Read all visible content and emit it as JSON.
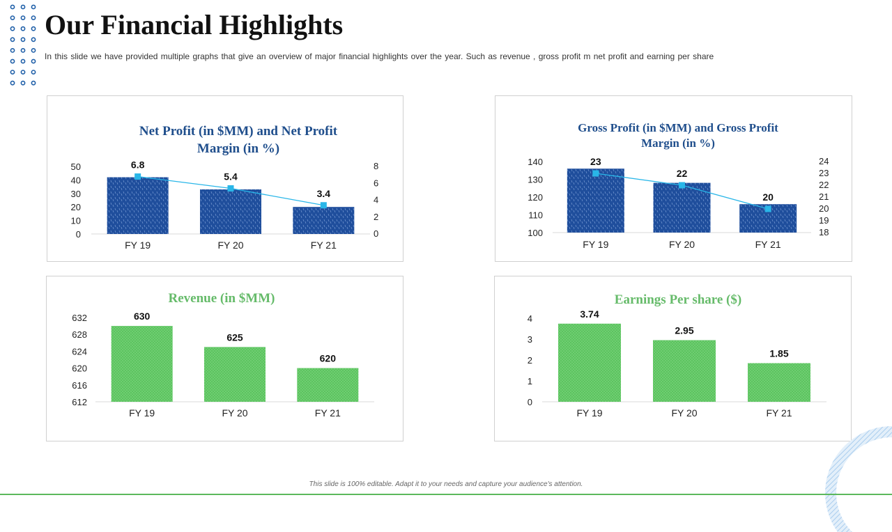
{
  "slide": {
    "title": "Our Financial Highlights",
    "subtitle": "In this slide we have provided  multiple graphs that give  an overview  of major financial highlights over the year.  Such as revenue   , gross profit  m net profit and earning per share",
    "footer": "This slide is 100% editable. Adapt it to your needs and capture your audience's attention."
  },
  "colors": {
    "blue_bar": "#1f4e9c",
    "blue_title": "#1f4e8c",
    "green_bar": "#5cc45f",
    "green_title": "#66bb6a",
    "line": "#29b6e8"
  },
  "chart_data": [
    {
      "id": "net-profit",
      "type": "bar",
      "title_lines": [
        "Net Profit  (in $MM) and Net Profit",
        "Margin  (in %)"
      ],
      "categories": [
        "FY 19",
        "FY 20",
        "FY 21"
      ],
      "series": [
        {
          "name": "Net Profit (in $MM)",
          "type": "bar",
          "axis": "left",
          "values": [
            42,
            33,
            20
          ]
        },
        {
          "name": "Net Profit Margin (in %)",
          "type": "line",
          "axis": "right",
          "values": [
            6.8,
            5.4,
            3.4
          ],
          "labels": [
            "6.8",
            "5.4",
            "3.4"
          ]
        }
      ],
      "y_left": {
        "min": 0,
        "max": 50,
        "ticks": [
          "0",
          "10",
          "20",
          "30",
          "40",
          "50"
        ]
      },
      "y_right": {
        "min": 0,
        "max": 8,
        "ticks": [
          "0",
          "2",
          "4",
          "6",
          "8"
        ]
      }
    },
    {
      "id": "gross-profit",
      "type": "bar",
      "title_lines": [
        "Gross Profit (in $MM) and Gross Profit",
        "Margin (in %)"
      ],
      "categories": [
        "FY 19",
        "FY 20",
        "FY 21"
      ],
      "series": [
        {
          "name": "Gross Profit (in $MM)",
          "type": "bar",
          "axis": "left",
          "values": [
            136,
            128,
            116
          ]
        },
        {
          "name": "Gross Profit Margin (in %)",
          "type": "line",
          "axis": "right",
          "values": [
            23,
            22,
            20
          ],
          "labels": [
            "23",
            "22",
            "20"
          ]
        }
      ],
      "y_left": {
        "min": 100,
        "max": 140,
        "ticks": [
          "100",
          "110",
          "120",
          "130",
          "140"
        ]
      },
      "y_right": {
        "min": 18,
        "max": 24,
        "ticks": [
          "18",
          "19",
          "20",
          "21",
          "22",
          "23",
          "24"
        ]
      }
    },
    {
      "id": "revenue",
      "type": "bar",
      "title_lines": [
        "Revenue  (in $MM)"
      ],
      "categories": [
        "FY 19",
        "FY 20",
        "FY 21"
      ],
      "series": [
        {
          "name": "Revenue (in $MM)",
          "type": "bar",
          "axis": "left",
          "values": [
            630,
            625,
            620
          ],
          "labels": [
            "630",
            "625",
            "620"
          ]
        }
      ],
      "y_left": {
        "min": 612,
        "max": 632,
        "ticks": [
          "612",
          "616",
          "620",
          "624",
          "628",
          "632"
        ]
      }
    },
    {
      "id": "eps",
      "type": "bar",
      "title_lines": [
        "Earnings  Per share  ($)"
      ],
      "categories": [
        "FY 19",
        "FY 20",
        "FY 21"
      ],
      "series": [
        {
          "name": "Earnings Per share ($)",
          "type": "bar",
          "axis": "left",
          "values": [
            3.74,
            2.95,
            1.85
          ],
          "labels": [
            "3.74",
            "2.95",
            "1.85"
          ]
        }
      ],
      "y_left": {
        "min": 0,
        "max": 4,
        "ticks": [
          "0",
          "1",
          "2",
          "3",
          "4"
        ]
      }
    }
  ]
}
